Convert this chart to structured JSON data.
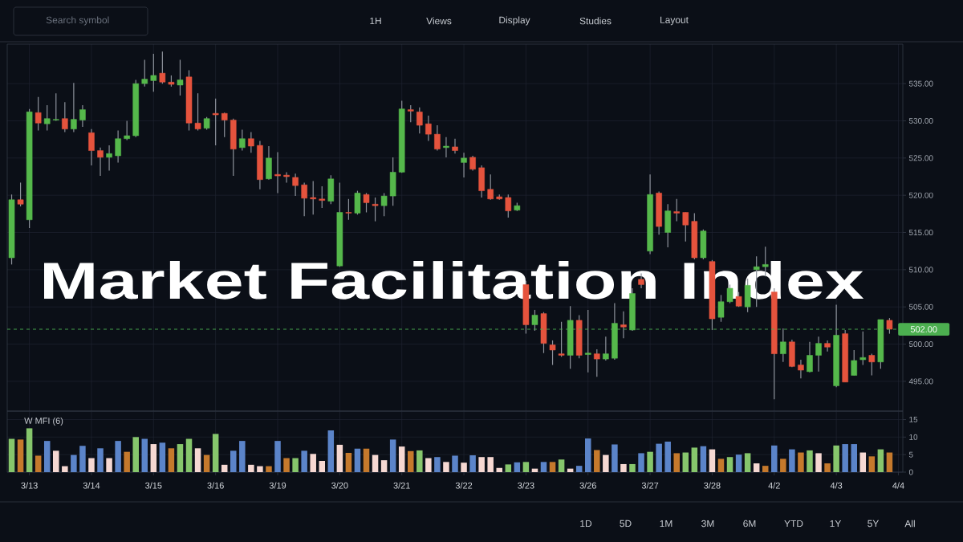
{
  "chart_data": [
    {
      "type": "candlestick",
      "title": "Market Facilitation Index",
      "categories": [
        null,
        null,
        null,
        null,
        null,
        null,
        null,
        null,
        null,
        null,
        null,
        null,
        null,
        null,
        null,
        null,
        null,
        null,
        null,
        null,
        null,
        null,
        null,
        null,
        null,
        null,
        null,
        null,
        null,
        null,
        null,
        null,
        null,
        null,
        null,
        null,
        null,
        null,
        null,
        null,
        null,
        null,
        null,
        null,
        null,
        null,
        null,
        null,
        null,
        null,
        null,
        null,
        null,
        null,
        null,
        null,
        null,
        null,
        null,
        null,
        null,
        null,
        null,
        null,
        null,
        null,
        null,
        null,
        null,
        null,
        null,
        null,
        null,
        null,
        null,
        null,
        null,
        null,
        null,
        null,
        null,
        null,
        null,
        null,
        null,
        null,
        null,
        null,
        null,
        null,
        null,
        null,
        null,
        null,
        null,
        null,
        null,
        null,
        null,
        null,
        null
      ],
      "ohlc": [
        [
          511.6,
          520.1,
          510.7,
          519.4
        ],
        [
          519.4,
          521.7,
          518.5,
          518.8
        ],
        [
          516.7,
          531.6,
          515.6,
          531.2
        ],
        [
          531.1,
          533.2,
          528.7,
          529.7
        ],
        [
          529.6,
          532.1,
          528.7,
          530.3
        ],
        [
          530.1,
          533.7,
          530.0,
          530.2
        ],
        [
          530.3,
          532.5,
          528.5,
          528.9
        ],
        [
          528.9,
          535.1,
          528.5,
          530.2
        ],
        [
          530.1,
          532.1,
          529.2,
          531.5
        ],
        [
          528.4,
          528.9,
          524.0,
          526.0
        ],
        [
          526.0,
          526.4,
          522.6,
          525.1
        ],
        [
          525.1,
          526.7,
          523.3,
          525.6
        ],
        [
          525.3,
          528.7,
          524.4,
          527.6
        ],
        [
          527.6,
          530.0,
          527.4,
          528.0
        ],
        [
          528.0,
          535.5,
          527.8,
          535.0
        ],
        [
          535.0,
          538.2,
          534.6,
          535.6
        ],
        [
          535.4,
          539.0,
          533.9,
          536.1
        ],
        [
          536.4,
          539.3,
          535.0,
          535.2
        ],
        [
          535.2,
          536.1,
          534.6,
          534.9
        ],
        [
          534.8,
          538.2,
          533.4,
          535.5
        ],
        [
          535.9,
          536.8,
          528.7,
          529.7
        ],
        [
          529.7,
          533.7,
          528.7,
          528.9
        ],
        [
          529.0,
          530.5,
          528.8,
          530.3
        ],
        [
          531.0,
          533.0,
          526.7,
          530.8
        ],
        [
          531.0,
          531.1,
          527.8,
          530.1
        ],
        [
          530.1,
          530.3,
          522.6,
          526.2
        ],
        [
          526.4,
          528.8,
          526.0,
          527.6
        ],
        [
          527.6,
          528.5,
          525.7,
          526.6
        ],
        [
          526.7,
          527.3,
          520.8,
          522.1
        ],
        [
          522.2,
          526.6,
          522.1,
          525.0
        ],
        [
          522.8,
          525.8,
          520.3,
          522.6
        ],
        [
          522.7,
          523.1,
          521.7,
          522.5
        ],
        [
          522.4,
          522.9,
          519.9,
          521.3
        ],
        [
          521.4,
          521.7,
          517.2,
          519.6
        ],
        [
          519.7,
          521.9,
          517.4,
          519.5
        ],
        [
          519.5,
          521.2,
          518.3,
          519.3
        ],
        [
          519.2,
          522.7,
          518.8,
          522.2
        ],
        [
          510.5,
          521.7,
          510.4,
          517.7
        ],
        [
          517.7,
          519.5,
          516.7,
          517.6
        ],
        [
          517.6,
          520.6,
          517.4,
          520.3
        ],
        [
          520.1,
          520.3,
          517.7,
          519.0
        ],
        [
          518.8,
          519.7,
          516.5,
          518.6
        ],
        [
          518.6,
          520.3,
          517.2,
          519.9
        ],
        [
          519.9,
          525.1,
          518.6,
          523.1
        ],
        [
          523.1,
          532.7,
          523.0,
          531.6
        ],
        [
          531.5,
          532.1,
          529.8,
          531.3
        ],
        [
          531.2,
          531.8,
          528.3,
          529.4
        ],
        [
          529.6,
          530.7,
          527.3,
          528.2
        ],
        [
          528.2,
          529.4,
          526.0,
          526.2
        ],
        [
          526.4,
          527.8,
          525.1,
          526.6
        ],
        [
          526.5,
          527.6,
          525.6,
          526.0
        ],
        [
          524.4,
          525.7,
          522.4,
          525.0
        ],
        [
          525.1,
          525.3,
          523.3,
          523.5
        ],
        [
          523.7,
          524.0,
          519.7,
          520.6
        ],
        [
          520.8,
          522.8,
          519.4,
          519.5
        ],
        [
          519.8,
          520.1,
          519.4,
          519.5
        ],
        [
          519.7,
          520.1,
          517.0,
          517.9
        ],
        [
          518.0,
          519.0,
          517.9,
          518.6
        ],
        [
          508.0,
          508.5,
          501.4,
          502.6
        ],
        [
          502.6,
          504.6,
          501.8,
          503.9
        ],
        [
          504.1,
          504.3,
          498.8,
          500.1
        ],
        [
          499.9,
          500.5,
          497.2,
          499.2
        ],
        [
          498.7,
          503.0,
          498.3,
          498.5
        ],
        [
          498.5,
          505.1,
          496.7,
          503.2
        ],
        [
          503.2,
          503.9,
          498.1,
          498.5
        ],
        [
          498.6,
          504.6,
          496.2,
          498.8
        ],
        [
          498.7,
          499.3,
          495.6,
          498.0
        ],
        [
          498.0,
          501.0,
          497.8,
          498.7
        ],
        [
          498.1,
          505.5,
          497.9,
          502.8
        ],
        [
          502.6,
          504.4,
          500.8,
          502.3
        ],
        [
          501.9,
          507.5,
          501.8,
          506.8
        ],
        [
          508.7,
          509.5,
          507.5,
          508.0
        ],
        [
          512.5,
          522.8,
          512.1,
          520.1
        ],
        [
          520.3,
          520.5,
          514.7,
          515.8
        ],
        [
          515.0,
          518.8,
          513.0,
          517.9
        ],
        [
          517.8,
          519.5,
          516.5,
          517.6
        ],
        [
          517.7,
          517.7,
          513.8,
          516.0
        ],
        [
          516.5,
          517.6,
          511.4,
          511.6
        ],
        [
          511.6,
          515.4,
          511.4,
          515.2
        ],
        [
          511.1,
          511.3,
          501.9,
          503.4
        ],
        [
          503.6,
          506.6,
          503.0,
          505.7
        ],
        [
          505.7,
          508.0,
          505.5,
          507.5
        ],
        [
          506.4,
          507.0,
          505.0,
          505.1
        ],
        [
          505.0,
          508.8,
          504.3,
          507.9
        ],
        [
          510.0,
          511.8,
          505.0,
          510.4
        ],
        [
          510.4,
          513.1,
          509.1,
          510.7
        ],
        [
          507.0,
          507.5,
          492.6,
          498.7
        ],
        [
          498.7,
          502.1,
          497.6,
          500.3
        ],
        [
          500.3,
          500.6,
          496.9,
          497.0
        ],
        [
          497.2,
          497.9,
          495.4,
          496.5
        ],
        [
          496.3,
          500.3,
          496.2,
          498.5
        ],
        [
          498.5,
          501.0,
          496.3,
          500.1
        ],
        [
          500.1,
          500.5,
          499.0,
          499.6
        ],
        [
          494.4,
          505.3,
          494.2,
          501.2
        ],
        [
          501.4,
          501.9,
          494.9,
          494.9
        ],
        [
          495.8,
          499.2,
          495.8,
          497.8
        ],
        [
          497.9,
          501.7,
          497.2,
          498.2
        ],
        [
          498.5,
          498.7,
          495.8,
          497.6
        ],
        [
          497.6,
          503.3,
          496.7,
          503.3
        ],
        [
          503.2,
          503.5,
          501.4,
          502.0
        ],
        null
      ],
      "colors": [
        "#55b84b",
        "#e5533d",
        "#55b84b",
        "#e5533d",
        "#55b84b",
        "#55b84b",
        "#e5533d",
        "#55b84b",
        "#55b84b",
        "#e5533d",
        "#e5533d",
        "#55b84b",
        "#55b84b",
        "#55b84b",
        "#55b84b",
        "#55b84b",
        "#55b84b",
        "#e5533d",
        "#e5533d",
        "#55b84b",
        "#e5533d",
        "#e5533d",
        "#55b84b",
        "#e5533d",
        "#e5533d",
        "#e5533d",
        "#55b84b",
        "#e5533d",
        "#e5533d",
        "#55b84b",
        "#e5533d",
        "#e5533d",
        "#e5533d",
        "#e5533d",
        "#e5533d",
        "#e5533d",
        "#55b84b",
        "#55b84b",
        "#e5533d",
        "#55b84b",
        "#e5533d",
        "#e5533d",
        "#55b84b",
        "#55b84b",
        "#55b84b",
        "#e5533d",
        "#e5533d",
        "#e5533d",
        "#e5533d",
        "#55b84b",
        "#e5533d",
        "#55b84b",
        "#e5533d",
        "#e5533d",
        "#e5533d",
        "#e5533d",
        "#e5533d",
        "#55b84b",
        "#e5533d",
        "#55b84b",
        "#e5533d",
        "#e5533d",
        "#e5533d",
        "#55b84b",
        "#e5533d",
        "#55b84b",
        "#e5533d",
        "#55b84b",
        "#55b84b",
        "#e5533d",
        "#55b84b",
        "#e5533d",
        "#55b84b",
        "#e5533d",
        "#55b84b",
        "#e5533d",
        "#e5533d",
        "#e5533d",
        "#55b84b",
        "#e5533d",
        "#55b84b",
        "#55b84b",
        "#e5533d",
        "#55b84b",
        "#55b84b",
        "#55b84b",
        "#e5533d",
        "#55b84b",
        "#e5533d",
        "#e5533d",
        "#55b84b",
        "#55b84b",
        "#e5533d",
        "#55b84b",
        "#e5533d",
        "#55b84b",
        "#55b84b",
        "#e5533d",
        "#55b84b",
        "#e5533d",
        null
      ],
      "ylim": [
        491,
        540.3
      ],
      "yticks": [
        {
          "value": 495,
          "label": "495.00"
        },
        {
          "value": 500,
          "label": "500.00"
        },
        {
          "value": 505,
          "label": "505.00"
        },
        {
          "value": 510,
          "label": "510.00"
        },
        {
          "value": 515,
          "label": "515.00"
        },
        {
          "value": 520,
          "label": "520.00"
        },
        {
          "value": 525,
          "label": "525.00"
        },
        {
          "value": 530,
          "label": "530.00"
        },
        {
          "value": 535,
          "label": "535.00"
        }
      ],
      "grid": true,
      "ref_lines": [
        {
          "axis": "y",
          "value": 502,
          "label": "502.00",
          "color": "#4caf50",
          "line_style": "dashed"
        }
      ],
      "annotations": [
        "Search symbol",
        "1H",
        "Views",
        "Display",
        "Studies",
        "Layout"
      ]
    },
    {
      "type": "bar",
      "title": "W MFI (6)",
      "categories": [
        null,
        null,
        "3/13",
        null,
        null,
        null,
        null,
        null,
        null,
        "3/14",
        null,
        null,
        null,
        null,
        null,
        null,
        "3/15",
        null,
        null,
        null,
        null,
        null,
        null,
        "3/16",
        null,
        null,
        null,
        null,
        null,
        null,
        "3/19",
        null,
        null,
        null,
        null,
        null,
        null,
        "3/20",
        null,
        null,
        null,
        null,
        null,
        null,
        "3/21",
        null,
        null,
        null,
        null,
        null,
        null,
        "3/22",
        null,
        null,
        null,
        null,
        null,
        null,
        "3/23",
        null,
        null,
        null,
        null,
        null,
        null,
        "3/26",
        null,
        null,
        null,
        null,
        null,
        null,
        "3/27",
        null,
        null,
        null,
        null,
        null,
        null,
        "3/28",
        null,
        null,
        null,
        null,
        null,
        null,
        "4/2",
        null,
        null,
        null,
        null,
        null,
        null,
        "4/3",
        null,
        null,
        null,
        null,
        null,
        null,
        "4/4"
      ],
      "values": [
        9.5,
        9.3,
        12.5,
        4.7,
        8.9,
        6.1,
        1.7,
        4.9,
        7.5,
        4.0,
        6.8,
        4.0,
        8.9,
        5.8,
        10.0,
        9.5,
        8.0,
        8.4,
        6.8,
        8.0,
        9.5,
        6.8,
        4.9,
        10.9,
        2.1,
        6.1,
        8.9,
        2.1,
        1.7,
        1.7,
        8.9,
        4.0,
        4.0,
        6.1,
        5.2,
        3.2,
        11.9,
        7.8,
        5.5,
        6.7,
        6.7,
        4.9,
        3.4,
        9.3,
        7.3,
        6.0,
        6.2,
        4.0,
        4.3,
        2.9,
        4.7,
        2.7,
        4.8,
        4.3,
        4.3,
        1.2,
        2.2,
        2.8,
        2.9,
        1.0,
        2.9,
        2.9,
        3.6,
        1.0,
        1.8,
        9.6,
        6.3,
        4.9,
        7.9,
        2.3,
        2.3,
        5.4,
        5.8,
        8.1,
        8.7,
        5.4,
        5.6,
        7.0,
        7.4,
        6.5,
        3.8,
        4.3,
        5.0,
        5.4,
        2.5,
        1.8,
        7.6,
        3.8,
        6.5,
        5.6,
        6.2,
        5.4,
        2.5,
        7.6,
        8.0,
        8.0,
        5.6,
        4.5,
        6.5,
        5.6,
        null
      ],
      "colors": [
        "#86c66c",
        "#c5792c",
        "#86c66c",
        "#c5792c",
        "#5b84c9",
        "#f6d8d2",
        "#f6d8d2",
        "#5b84c9",
        "#5b84c9",
        "#f6d8d2",
        "#5b84c9",
        "#f6d8d2",
        "#5b84c9",
        "#c5792c",
        "#86c66c",
        "#5b84c9",
        "#f6d8d2",
        "#5b84c9",
        "#c5792c",
        "#86c66c",
        "#86c66c",
        "#f6d8d2",
        "#c5792c",
        "#86c66c",
        "#f6d8d2",
        "#5b84c9",
        "#5b84c9",
        "#f6d8d2",
        "#f6d8d2",
        "#c5792c",
        "#5b84c9",
        "#c5792c",
        "#86c66c",
        "#5b84c9",
        "#f6d8d2",
        "#f6d8d2",
        "#5b84c9",
        "#f6d8d2",
        "#c5792c",
        "#5b84c9",
        "#c5792c",
        "#f6d8d2",
        "#f6d8d2",
        "#5b84c9",
        "#f6d8d2",
        "#c5792c",
        "#86c66c",
        "#f6d8d2",
        "#5b84c9",
        "#f6d8d2",
        "#5b84c9",
        "#f6d8d2",
        "#5b84c9",
        "#f6d8d2",
        "#f6d8d2",
        "#f6d8d2",
        "#86c66c",
        "#5b84c9",
        "#86c66c",
        "#f6d8d2",
        "#5b84c9",
        "#c5792c",
        "#86c66c",
        "#f6d8d2",
        "#5b84c9",
        "#5b84c9",
        "#c5792c",
        "#f6d8d2",
        "#5b84c9",
        "#f6d8d2",
        "#86c66c",
        "#5b84c9",
        "#86c66c",
        "#5b84c9",
        "#5b84c9",
        "#c5792c",
        "#86c66c",
        "#86c66c",
        "#5b84c9",
        "#f6d8d2",
        "#c5792c",
        "#86c66c",
        "#5b84c9",
        "#86c66c",
        "#f6d8d2",
        "#c5792c",
        "#5b84c9",
        "#c5792c",
        "#5b84c9",
        "#c5792c",
        "#86c66c",
        "#f6d8d2",
        "#c5792c",
        "#86c66c",
        "#5b84c9",
        "#5b84c9",
        "#f6d8d2",
        "#c5792c",
        "#86c66c",
        "#c5792c",
        null
      ],
      "ylim": [
        0,
        17.4
      ],
      "yticks": [
        0,
        5,
        10,
        15
      ],
      "grid": true,
      "annotations": [
        "1D",
        "5D",
        "1M",
        "3M",
        "6M",
        "YTD",
        "1Y",
        "5Y",
        "All"
      ]
    }
  ]
}
